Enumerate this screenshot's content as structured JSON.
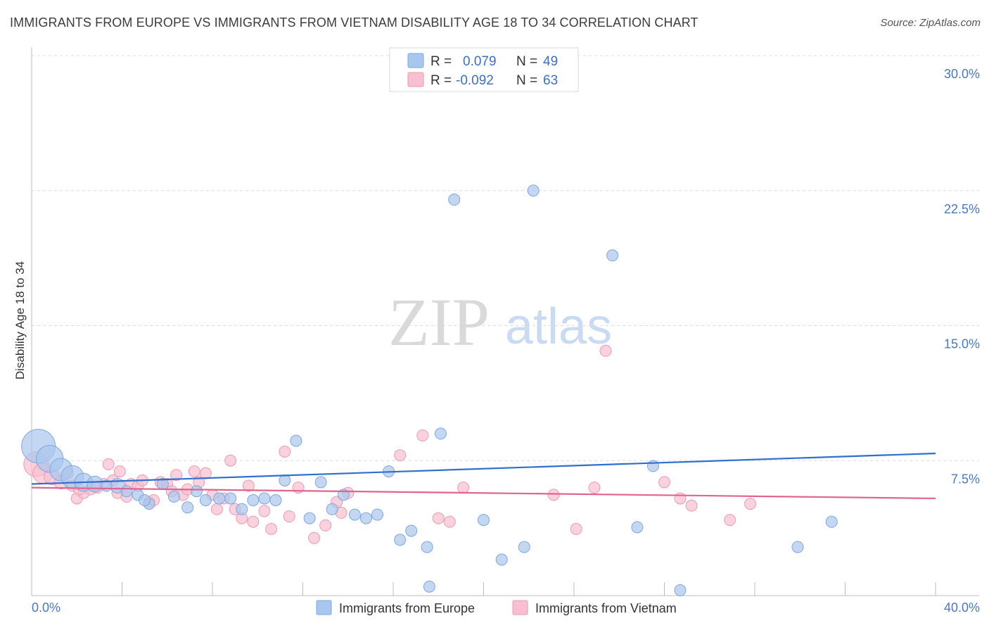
{
  "title": "IMMIGRANTS FROM EUROPE VS IMMIGRANTS FROM VIETNAM DISABILITY AGE 18 TO 34 CORRELATION CHART",
  "source": "Source: ZipAtlas.com",
  "watermark": {
    "zip": "ZIP",
    "atlas": "atlas"
  },
  "colors": {
    "europe_fill": "#a9c6ee",
    "europe_stroke": "#7ea7de",
    "europe_line": "#2f6fce",
    "vietnam_fill": "#f7bfd0",
    "vietnam_stroke": "#ee9ab4",
    "vietnam_line": "#e0648f",
    "tick_text": "#4a78c2",
    "grid": "#dcdcdc"
  },
  "legend_stats": {
    "europe": {
      "r_label": "R =",
      "r_value": "0.079",
      "n_label": "N =",
      "n_value": "49"
    },
    "vietnam": {
      "r_label": "R =",
      "r_value": "-0.092",
      "n_label": "N =",
      "n_value": "63"
    }
  },
  "bottom_legend": {
    "europe": "Immigrants from Europe",
    "vietnam": "Immigrants from Vietnam"
  },
  "chart_data": {
    "type": "scatter",
    "title": "IMMIGRANTS FROM EUROPE VS IMMIGRANTS FROM VIETNAM DISABILITY AGE 18 TO 34 CORRELATION CHART",
    "xlabel": "",
    "ylabel": "Disability Age 18 to 34",
    "xlim": [
      0,
      40
    ],
    "ylim": [
      0,
      30
    ],
    "x_tick_labels": [
      "0.0%",
      "40.0%"
    ],
    "y_ticks": [
      7.5,
      15.0,
      22.5,
      30.0
    ],
    "y_tick_labels": [
      "7.5%",
      "15.0%",
      "22.5%",
      "30.0%"
    ],
    "grid": true,
    "legend_position": "top-center",
    "series": [
      {
        "name": "Immigrants from Europe",
        "r": 0.079,
        "n": 49,
        "trend": {
          "x": [
            0,
            40
          ],
          "y": [
            6.2,
            7.9
          ]
        },
        "points": [
          {
            "x": 0.3,
            "y": 8.3,
            "s": 3
          },
          {
            "x": 0.8,
            "y": 7.6,
            "s": 2.4
          },
          {
            "x": 1.3,
            "y": 7.0,
            "s": 2
          },
          {
            "x": 1.8,
            "y": 6.6,
            "s": 2
          },
          {
            "x": 2.3,
            "y": 6.3,
            "s": 1.6
          },
          {
            "x": 2.8,
            "y": 6.2,
            "s": 1.4
          },
          {
            "x": 3.8,
            "y": 6.1,
            "s": 1.3
          },
          {
            "x": 4.2,
            "y": 5.8,
            "s": 1
          },
          {
            "x": 4.7,
            "y": 5.6,
            "s": 1
          },
          {
            "x": 5.2,
            "y": 5.1,
            "s": 1
          },
          {
            "x": 5.8,
            "y": 6.2,
            "s": 1
          },
          {
            "x": 6.3,
            "y": 5.5,
            "s": 1
          },
          {
            "x": 6.9,
            "y": 4.9,
            "s": 1
          },
          {
            "x": 7.3,
            "y": 5.8,
            "s": 1
          },
          {
            "x": 7.7,
            "y": 5.3,
            "s": 1
          },
          {
            "x": 8.3,
            "y": 5.4,
            "s": 1
          },
          {
            "x": 8.8,
            "y": 5.4,
            "s": 1
          },
          {
            "x": 9.3,
            "y": 4.8,
            "s": 1
          },
          {
            "x": 9.8,
            "y": 5.3,
            "s": 1
          },
          {
            "x": 10.3,
            "y": 5.4,
            "s": 1
          },
          {
            "x": 10.8,
            "y": 5.3,
            "s": 1
          },
          {
            "x": 11.2,
            "y": 6.4,
            "s": 1
          },
          {
            "x": 11.7,
            "y": 8.6,
            "s": 1
          },
          {
            "x": 12.3,
            "y": 4.3,
            "s": 1
          },
          {
            "x": 12.8,
            "y": 6.3,
            "s": 1
          },
          {
            "x": 13.3,
            "y": 4.8,
            "s": 1
          },
          {
            "x": 13.8,
            "y": 5.6,
            "s": 1
          },
          {
            "x": 14.3,
            "y": 4.5,
            "s": 1
          },
          {
            "x": 14.8,
            "y": 4.3,
            "s": 1
          },
          {
            "x": 15.3,
            "y": 4.5,
            "s": 1
          },
          {
            "x": 15.8,
            "y": 6.9,
            "s": 1
          },
          {
            "x": 16.3,
            "y": 3.1,
            "s": 1
          },
          {
            "x": 16.8,
            "y": 3.6,
            "s": 1
          },
          {
            "x": 17.5,
            "y": 2.7,
            "s": 1
          },
          {
            "x": 17.6,
            "y": 0.5,
            "s": 1
          },
          {
            "x": 18.1,
            "y": 9.0,
            "s": 1
          },
          {
            "x": 18.7,
            "y": 22.0,
            "s": 1
          },
          {
            "x": 20.0,
            "y": 4.2,
            "s": 1
          },
          {
            "x": 20.8,
            "y": 2.0,
            "s": 1
          },
          {
            "x": 21.8,
            "y": 2.7,
            "s": 1
          },
          {
            "x": 22.2,
            "y": 22.5,
            "s": 1
          },
          {
            "x": 25.7,
            "y": 18.9,
            "s": 1
          },
          {
            "x": 26.8,
            "y": 3.8,
            "s": 1
          },
          {
            "x": 27.5,
            "y": 7.2,
            "s": 1
          },
          {
            "x": 28.7,
            "y": 0.3,
            "s": 1
          },
          {
            "x": 33.9,
            "y": 2.7,
            "s": 1
          },
          {
            "x": 35.4,
            "y": 4.1,
            "s": 1
          },
          {
            "x": 3.3,
            "y": 6.1,
            "s": 1
          },
          {
            "x": 5.0,
            "y": 5.3,
            "s": 1
          }
        ]
      },
      {
        "name": "Immigrants from Vietnam",
        "r": -0.092,
        "n": 63,
        "trend": {
          "x": [
            0,
            40
          ],
          "y": [
            6.0,
            5.4
          ]
        },
        "points": [
          {
            "x": 0.2,
            "y": 7.3,
            "s": 2.2
          },
          {
            "x": 0.5,
            "y": 6.8,
            "s": 1.8
          },
          {
            "x": 0.9,
            "y": 6.6,
            "s": 1.4
          },
          {
            "x": 1.3,
            "y": 6.3,
            "s": 1.2
          },
          {
            "x": 1.6,
            "y": 6.8,
            "s": 1
          },
          {
            "x": 1.8,
            "y": 6.1,
            "s": 1
          },
          {
            "x": 2.0,
            "y": 5.4,
            "s": 1
          },
          {
            "x": 2.3,
            "y": 5.7,
            "s": 1
          },
          {
            "x": 2.6,
            "y": 5.9,
            "s": 1
          },
          {
            "x": 2.9,
            "y": 6.0,
            "s": 1
          },
          {
            "x": 3.2,
            "y": 6.2,
            "s": 1
          },
          {
            "x": 3.4,
            "y": 7.3,
            "s": 1
          },
          {
            "x": 3.6,
            "y": 6.4,
            "s": 1
          },
          {
            "x": 3.8,
            "y": 5.7,
            "s": 1
          },
          {
            "x": 3.9,
            "y": 6.9,
            "s": 1
          },
          {
            "x": 4.2,
            "y": 5.5,
            "s": 1
          },
          {
            "x": 4.4,
            "y": 6.2,
            "s": 1
          },
          {
            "x": 4.7,
            "y": 6.1,
            "s": 1
          },
          {
            "x": 4.9,
            "y": 6.4,
            "s": 1
          },
          {
            "x": 5.2,
            "y": 5.2,
            "s": 1
          },
          {
            "x": 5.4,
            "y": 5.3,
            "s": 1
          },
          {
            "x": 5.7,
            "y": 6.3,
            "s": 1
          },
          {
            "x": 6.0,
            "y": 6.2,
            "s": 1
          },
          {
            "x": 6.2,
            "y": 5.8,
            "s": 1
          },
          {
            "x": 6.4,
            "y": 6.7,
            "s": 1
          },
          {
            "x": 6.7,
            "y": 5.6,
            "s": 1
          },
          {
            "x": 6.9,
            "y": 5.9,
            "s": 1
          },
          {
            "x": 7.2,
            "y": 6.9,
            "s": 1
          },
          {
            "x": 7.4,
            "y": 6.3,
            "s": 1
          },
          {
            "x": 7.7,
            "y": 6.8,
            "s": 1
          },
          {
            "x": 8.0,
            "y": 5.6,
            "s": 1
          },
          {
            "x": 8.2,
            "y": 4.8,
            "s": 1
          },
          {
            "x": 8.5,
            "y": 5.4,
            "s": 1
          },
          {
            "x": 8.8,
            "y": 7.5,
            "s": 1
          },
          {
            "x": 9.0,
            "y": 4.8,
            "s": 1
          },
          {
            "x": 9.3,
            "y": 4.3,
            "s": 1
          },
          {
            "x": 9.6,
            "y": 6.1,
            "s": 1
          },
          {
            "x": 9.8,
            "y": 4.1,
            "s": 1
          },
          {
            "x": 10.3,
            "y": 4.7,
            "s": 1
          },
          {
            "x": 10.6,
            "y": 3.7,
            "s": 1
          },
          {
            "x": 11.2,
            "y": 8.0,
            "s": 1
          },
          {
            "x": 11.4,
            "y": 4.4,
            "s": 1
          },
          {
            "x": 11.8,
            "y": 6.0,
            "s": 1
          },
          {
            "x": 12.5,
            "y": 3.2,
            "s": 1
          },
          {
            "x": 13.0,
            "y": 3.9,
            "s": 1
          },
          {
            "x": 13.5,
            "y": 5.2,
            "s": 1
          },
          {
            "x": 13.7,
            "y": 4.6,
            "s": 1
          },
          {
            "x": 14.0,
            "y": 5.7,
            "s": 1
          },
          {
            "x": 16.3,
            "y": 7.8,
            "s": 1
          },
          {
            "x": 17.3,
            "y": 8.9,
            "s": 1
          },
          {
            "x": 18.0,
            "y": 4.3,
            "s": 1
          },
          {
            "x": 18.5,
            "y": 4.1,
            "s": 1
          },
          {
            "x": 19.1,
            "y": 6.0,
            "s": 1
          },
          {
            "x": 23.1,
            "y": 5.6,
            "s": 1
          },
          {
            "x": 24.1,
            "y": 3.7,
            "s": 1
          },
          {
            "x": 24.9,
            "y": 6.0,
            "s": 1
          },
          {
            "x": 25.4,
            "y": 13.6,
            "s": 1
          },
          {
            "x": 28.0,
            "y": 6.3,
            "s": 1
          },
          {
            "x": 28.7,
            "y": 5.4,
            "s": 1
          },
          {
            "x": 29.2,
            "y": 5.0,
            "s": 1
          },
          {
            "x": 30.9,
            "y": 4.2,
            "s": 1
          },
          {
            "x": 31.8,
            "y": 5.1,
            "s": 1
          },
          {
            "x": 2.1,
            "y": 5.9,
            "s": 1
          }
        ]
      }
    ]
  }
}
